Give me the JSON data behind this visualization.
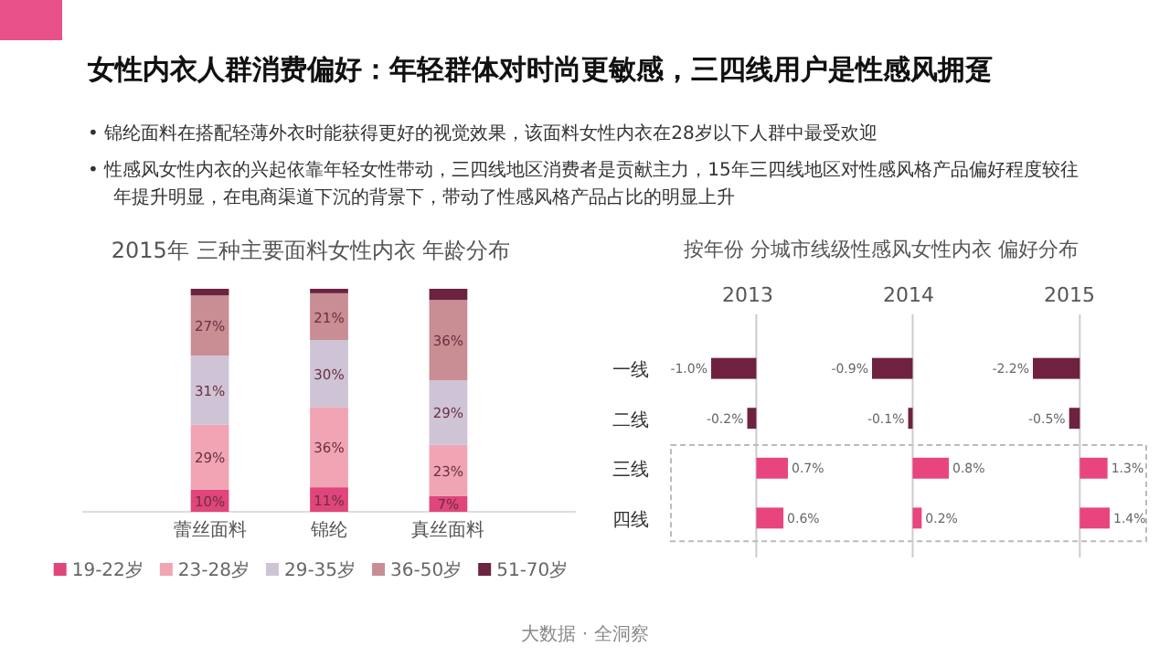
{
  "chart_data": [
    {
      "type": "other",
      "title": "女性内衣人群消费偏好：年轻群体对时尚更敏感，三四线用户是性感风拥趸",
      "annotations": [
        "• 锦纶面料在搭配轻薄外衣时能获得更好的视觉效果，该面料女性内衣在28岁以下人群中最受欢迎",
        "• 性感风女性内衣的兴起依靠年轻女性带动，三四线地区消费者是贡献主力，15年三四线地区对性感风格产品偏好程度较往年提升明显，在电商渠道下沉的背景下，带动了性感风格产品占比的明显上升",
        "大数据 · 全洞察"
      ]
    },
    {
      "type": "bar",
      "stacked": true,
      "title": "2015年 三种主要面料女性内衣 年龄分布",
      "categories": [
        "蕾丝面料",
        "锦纶",
        "真丝面料"
      ],
      "ylim": [
        0,
        100
      ],
      "legend": "bottom",
      "series": [
        {
          "name": "19-22岁",
          "color": "#e0457b",
          "values": [
            10,
            11,
            7
          ],
          "value_labels": [
            "10%",
            "11%",
            "7%"
          ]
        },
        {
          "name": "23-28岁",
          "color": "#f0a4b4",
          "values": [
            29,
            36,
            23
          ],
          "value_labels": [
            "29%",
            "36%",
            "23%"
          ]
        },
        {
          "name": "29-35岁",
          "color": "#cfc4d6",
          "values": [
            31,
            30,
            29
          ],
          "value_labels": [
            "31%",
            "30%",
            "29%"
          ]
        },
        {
          "name": "36-50岁",
          "color": "#c98d94",
          "values": [
            27,
            21,
            36
          ],
          "value_labels": [
            "27%",
            "21%",
            "36%"
          ]
        },
        {
          "name": "51-70岁",
          "color": "#6b2340",
          "values": [
            3,
            2,
            5
          ],
          "value_labels": [
            null,
            null,
            null
          ]
        }
      ]
    },
    {
      "type": "bar",
      "orientation": "horizontal",
      "title": "按年份 分城市线级性感风女性内衣 偏好分布",
      "subtitle": "2013",
      "categories": [
        "一线",
        "二线",
        "三线",
        "四线"
      ],
      "values": [
        -1.0,
        -0.2,
        0.7,
        0.6
      ],
      "value_labels": [
        "-1.0%",
        "-0.2%",
        "0.7%",
        "0.6%"
      ],
      "colors": [
        "#6e2240",
        "#6e2240",
        "#e8457f",
        "#e8457f"
      ],
      "tick_labels": "y"
    },
    {
      "type": "bar",
      "orientation": "horizontal",
      "subtitle": "2014",
      "values": [
        -0.9,
        -0.1,
        0.8,
        0.2
      ],
      "value_labels": [
        "-0.9%",
        "-0.1%",
        "0.8%",
        "0.2%"
      ],
      "colors": [
        "#6e2240",
        "#6e2240",
        "#e8457f",
        "#e8457f"
      ],
      "tick_labels": false
    },
    {
      "type": "bar",
      "orientation": "horizontal",
      "subtitle": "2015",
      "values": [
        -2.2,
        -0.5,
        1.3,
        1.4
      ],
      "value_labels": [
        "-2.2%",
        "-0.5%",
        "1.3%",
        "1.4%"
      ],
      "colors": [
        "#6e2240",
        "#6e2240",
        "#e8457f",
        "#e8457f"
      ],
      "tick_labels": false
    }
  ]
}
